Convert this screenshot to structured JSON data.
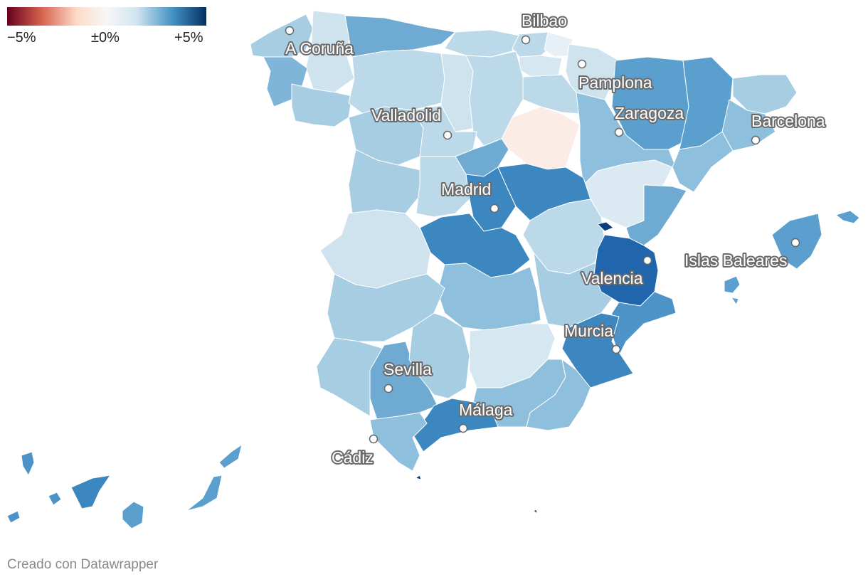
{
  "legend": {
    "min_label": "−5%",
    "mid_label": "±0%",
    "max_label": "+5%",
    "colors": [
      "#67001f",
      "#d6604d",
      "#fddbc7",
      "#f7f7f7",
      "#d1e5f0",
      "#4393c3",
      "#053061"
    ]
  },
  "cities": [
    {
      "name": "Bilbao"
    },
    {
      "name": "A Coruña"
    },
    {
      "name": "Pamplona"
    },
    {
      "name": "Zaragoza"
    },
    {
      "name": "Barcelona"
    },
    {
      "name": "Valladolid"
    },
    {
      "name": "Madrid"
    },
    {
      "name": "Islas Baleares"
    },
    {
      "name": "Valencia"
    },
    {
      "name": "Murcia"
    },
    {
      "name": "Sevilla"
    },
    {
      "name": "Málaga"
    },
    {
      "name": "Cádiz"
    }
  ],
  "credit": "Creado con Datawrapper"
}
